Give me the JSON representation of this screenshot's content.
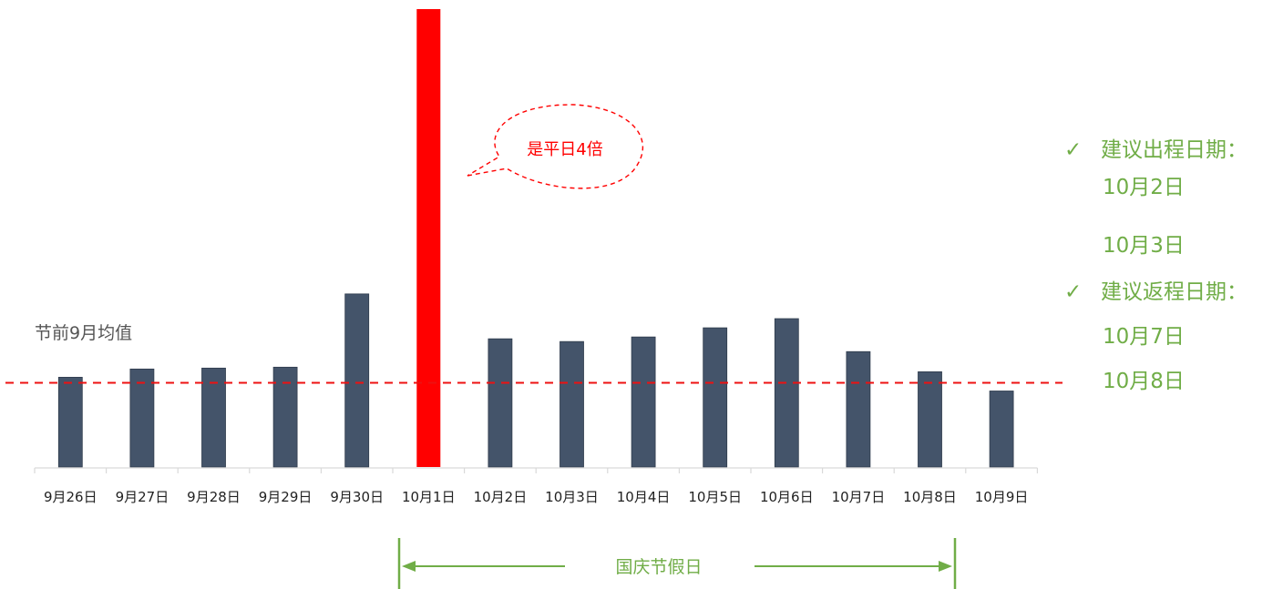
{
  "colors": {
    "bar": "#44546a",
    "highlight_bar": "#ff0000",
    "average_line": "#ee1111",
    "callout": "#ff0000",
    "green": "#70ad47",
    "axis": "#d9d9d9"
  },
  "chart_data": {
    "type": "bar",
    "categories": [
      "9月26日",
      "9月27日",
      "9月28日",
      "9月29日",
      "9月30日",
      "10月1日",
      "10月2日",
      "10月3日",
      "10月4日",
      "10月5日",
      "10月6日",
      "10月7日",
      "10月8日",
      "10月9日"
    ],
    "values": [
      98,
      107,
      108,
      109,
      189,
      500,
      140,
      137,
      142,
      152,
      162,
      126,
      104,
      83
    ],
    "ylim": [
      0,
      500
    ],
    "highlight_index": 5,
    "grid": false,
    "average_line": {
      "value": 92,
      "label": "节前9月均值"
    },
    "callout": {
      "text": "是平日4倍"
    },
    "holiday_span": {
      "label": "国庆节假日"
    }
  },
  "recommendations": {
    "check_icon": "✓",
    "outbound_title": "建议出程日期：",
    "outbound_dates": [
      "10月2日",
      "10月3日"
    ],
    "return_title": "建议返程日期：",
    "return_dates": [
      "10月7日",
      "10月8日"
    ]
  }
}
